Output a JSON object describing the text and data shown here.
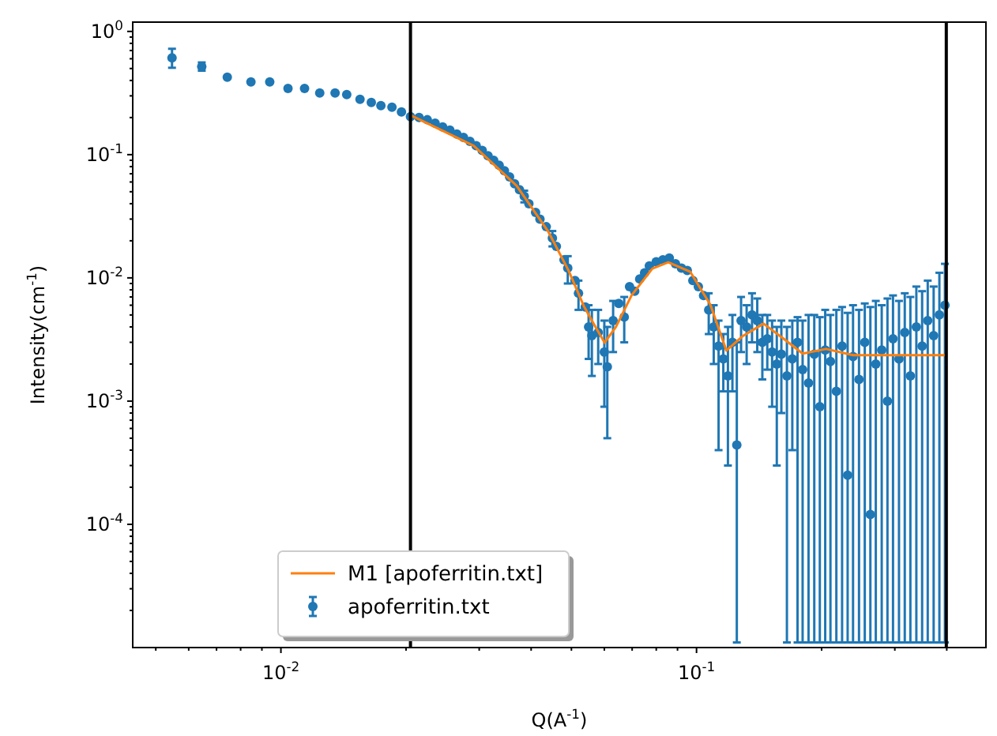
{
  "chart_data": {
    "type": "scatter",
    "xlabel": "Q(A$^{-1}$)",
    "ylabel": "Intensity(cm$^{-1}$)",
    "log": "xy",
    "legend": "bottom",
    "grid": false,
    "xlim": [
      0.0044,
      0.497
    ],
    "ylim": [
      1e-05,
      1.19
    ],
    "xticks": [
      {
        "value": 0.005,
        "label": null
      },
      {
        "value": 0.006,
        "label": null
      },
      {
        "value": 0.007,
        "label": null
      },
      {
        "value": 0.008,
        "label": null
      },
      {
        "value": 0.009,
        "label": null
      },
      {
        "value": 0.01,
        "label": "10$^{-2}$"
      },
      {
        "value": 0.02,
        "label": null
      },
      {
        "value": 0.03,
        "label": null
      },
      {
        "value": 0.04,
        "label": null
      },
      {
        "value": 0.05,
        "label": null
      },
      {
        "value": 0.06,
        "label": null
      },
      {
        "value": 0.07,
        "label": null
      },
      {
        "value": 0.08,
        "label": null
      },
      {
        "value": 0.09,
        "label": null
      },
      {
        "value": 0.1,
        "label": "10$^{-1}$"
      },
      {
        "value": 0.2,
        "label": null
      },
      {
        "value": 0.3,
        "label": null
      },
      {
        "value": 0.4,
        "label": null
      }
    ],
    "yticks": [
      {
        "value": 2e-05,
        "label": null
      },
      {
        "value": 3e-05,
        "label": null
      },
      {
        "value": 4e-05,
        "label": null
      },
      {
        "value": 5e-05,
        "label": null
      },
      {
        "value": 6e-05,
        "label": null
      },
      {
        "value": 7e-05,
        "label": null
      },
      {
        "value": 8e-05,
        "label": null
      },
      {
        "value": 9e-05,
        "label": null
      },
      {
        "value": 0.0001,
        "label": "10$^{-4}$"
      },
      {
        "value": 0.0002,
        "label": null
      },
      {
        "value": 0.0003,
        "label": null
      },
      {
        "value": 0.0004,
        "label": null
      },
      {
        "value": 0.0005,
        "label": null
      },
      {
        "value": 0.0006,
        "label": null
      },
      {
        "value": 0.0007,
        "label": null
      },
      {
        "value": 0.0008,
        "label": null
      },
      {
        "value": 0.0009,
        "label": null
      },
      {
        "value": 0.001,
        "label": "10$^{-3}$"
      },
      {
        "value": 0.002,
        "label": null
      },
      {
        "value": 0.003,
        "label": null
      },
      {
        "value": 0.004,
        "label": null
      },
      {
        "value": 0.005,
        "label": null
      },
      {
        "value": 0.006,
        "label": null
      },
      {
        "value": 0.007,
        "label": null
      },
      {
        "value": 0.008,
        "label": null
      },
      {
        "value": 0.009,
        "label": null
      },
      {
        "value": 0.01,
        "label": "10$^{-2}$"
      },
      {
        "value": 0.02,
        "label": null
      },
      {
        "value": 0.03,
        "label": null
      },
      {
        "value": 0.04,
        "label": null
      },
      {
        "value": 0.05,
        "label": null
      },
      {
        "value": 0.06,
        "label": null
      },
      {
        "value": 0.07,
        "label": null
      },
      {
        "value": 0.08,
        "label": null
      },
      {
        "value": 0.09,
        "label": null
      },
      {
        "value": 0.1,
        "label": "10$^{-1}$"
      },
      {
        "value": 0.2,
        "label": null
      },
      {
        "value": 0.3,
        "label": null
      },
      {
        "value": 0.4,
        "label": null
      },
      {
        "value": 0.5,
        "label": null
      },
      {
        "value": 0.6,
        "label": null
      },
      {
        "value": 0.7,
        "label": null
      },
      {
        "value": 0.8,
        "label": null
      },
      {
        "value": 0.9,
        "label": null
      },
      {
        "value": 1,
        "label": "10$^{0}$"
      }
    ],
    "ref_lines": [
      {
        "axis": "x",
        "value": 0.0205,
        "color": "#000000"
      },
      {
        "axis": "x",
        "value": 0.399,
        "color": "#000000"
      }
    ],
    "series": [
      {
        "name": "M1 [apoferritin.txt]",
        "type": "line",
        "color": "#ff7f0e",
        "marker": "none",
        "line_style": "solid",
        "x": [
          0.0205,
          0.0291,
          0.0369,
          0.0439,
          0.0492,
          0.0537,
          0.0571,
          0.0601,
          0.064,
          0.0698,
          0.0783,
          0.0855,
          0.0966,
          0.108,
          0.118,
          0.129,
          0.145,
          0.163,
          0.18,
          0.205,
          0.238,
          0.283,
          0.399
        ],
        "values": [
          0.209,
          0.118,
          0.056,
          0.024,
          0.0115,
          0.0058,
          0.00401,
          0.00298,
          0.00401,
          0.00722,
          0.0119,
          0.0134,
          0.0112,
          0.00605,
          0.00257,
          0.00336,
          0.00425,
          0.00316,
          0.00243,
          0.00265,
          0.00236,
          0.00236,
          0.00236
        ]
      },
      {
        "name": "apoferritin.txt",
        "color": "#1f77b4",
        "marker": "circle",
        "x": [
          0.00547,
          0.00645,
          0.00743,
          0.00847,
          0.0094,
          0.0104,
          0.0114,
          0.0124,
          0.0135,
          0.0144,
          0.0155,
          0.0165,
          0.0174,
          0.0185,
          0.0195,
          0.0205,
          0.0215,
          0.0225,
          0.0235,
          0.0245,
          0.0255,
          0.0265,
          0.0275,
          0.0285,
          0.0295,
          0.0305,
          0.0315,
          0.0325,
          0.0335,
          0.0345,
          0.0355,
          0.0365,
          0.0375,
          0.0385,
          0.0395,
          0.041,
          0.042,
          0.0435,
          0.045,
          0.046,
          0.048,
          0.049,
          0.051,
          0.052,
          0.054,
          0.055,
          0.056,
          0.058,
          0.06,
          0.061,
          0.063,
          0.065,
          0.067,
          0.069,
          0.071,
          0.073,
          0.075,
          0.077,
          0.08,
          0.083,
          0.086,
          0.089,
          0.092,
          0.095,
          0.098,
          0.101,
          0.104,
          0.107,
          0.11,
          0.113,
          0.116,
          0.119,
          0.122,
          0.125,
          0.128,
          0.132,
          0.136,
          0.14,
          0.144,
          0.148,
          0.152,
          0.156,
          0.16,
          0.165,
          0.17,
          0.175,
          0.18,
          0.186,
          0.192,
          0.198,
          0.204,
          0.21,
          0.217,
          0.224,
          0.231,
          0.238,
          0.246,
          0.254,
          0.262,
          0.27,
          0.279,
          0.288,
          0.297,
          0.307,
          0.317,
          0.327,
          0.338,
          0.349,
          0.36,
          0.372,
          0.384,
          0.396
        ],
        "values": [
          0.611,
          0.518,
          0.425,
          0.389,
          0.389,
          0.345,
          0.345,
          0.316,
          0.316,
          0.307,
          0.281,
          0.265,
          0.25,
          0.243,
          0.222,
          0.203,
          0.2,
          0.192,
          0.18,
          0.168,
          0.158,
          0.147,
          0.138,
          0.128,
          0.118,
          0.108,
          0.098,
          0.09,
          0.082,
          0.074,
          0.066,
          0.058,
          0.052,
          0.046,
          0.04,
          0.034,
          0.03,
          0.026,
          0.021,
          0.018,
          0.014,
          0.012,
          0.0095,
          0.0075,
          0.0058,
          0.004,
          0.0034,
          0.0036,
          0.0025,
          0.0019,
          0.0045,
          0.0062,
          0.0048,
          0.0085,
          0.0078,
          0.0098,
          0.011,
          0.0125,
          0.0135,
          0.014,
          0.0145,
          0.013,
          0.012,
          0.0115,
          0.0095,
          0.0085,
          0.0072,
          0.0055,
          0.004,
          0.0028,
          0.0022,
          0.0016,
          0.003,
          0.00044,
          0.0045,
          0.004,
          0.005,
          0.0045,
          0.003,
          0.0032,
          0.0025,
          0.002,
          0.0024,
          0.0016,
          0.0022,
          0.003,
          0.0018,
          0.0014,
          0.0024,
          0.0009,
          0.0026,
          0.0021,
          0.0012,
          0.0028,
          0.00025,
          0.0023,
          0.0015,
          0.003,
          0.00012,
          0.002,
          0.0026,
          0.001,
          0.0032,
          0.0022,
          0.0036,
          0.0016,
          0.004,
          0.0028,
          0.0045,
          0.0034,
          0.005,
          0.006
        ],
        "errors": [
          [
            0.507,
            0.723
          ],
          [
            0.48,
            0.56
          ],
          null,
          null,
          null,
          null,
          null,
          null,
          null,
          null,
          null,
          null,
          null,
          null,
          null,
          null,
          null,
          null,
          null,
          null,
          null,
          null,
          null,
          null,
          null,
          null,
          null,
          null,
          null,
          null,
          null,
          null,
          null,
          [
            0.041,
            0.051
          ],
          null,
          null,
          null,
          null,
          [
            0.018,
            0.024
          ],
          null,
          null,
          [
            0.009,
            0.015
          ],
          null,
          [
            0.0055,
            0.0095
          ],
          null,
          [
            0.0022,
            0.006
          ],
          [
            0.0016,
            0.0055
          ],
          [
            0.002,
            0.0055
          ],
          [
            0.0009,
            0.0045
          ],
          [
            0.0005,
            0.004
          ],
          [
            0.0025,
            0.0065
          ],
          null,
          [
            0.003,
            0.007
          ],
          null,
          null,
          null,
          null,
          null,
          null,
          null,
          null,
          null,
          null,
          null,
          null,
          null,
          null,
          [
            0.0035,
            0.0075
          ],
          [
            0.002,
            0.006
          ],
          [
            0.0004,
            0.0045
          ],
          [
            0.0012,
            0.0035
          ],
          [
            0.0003,
            0.004
          ],
          [
            0.0012,
            0.005
          ],
          [
            1.1e-05,
            0.003
          ],
          [
            0.0025,
            0.007
          ],
          [
            0.002,
            0.006
          ],
          [
            0.003,
            0.0075
          ],
          [
            0.0025,
            0.0068
          ],
          [
            0.0015,
            0.005
          ],
          [
            0.0018,
            0.005
          ],
          [
            0.0009,
            0.0045
          ],
          [
            0.0003,
            0.004
          ],
          [
            0.0008,
            0.0045
          ],
          [
            1.1e-05,
            0.004
          ],
          [
            0.0004,
            0.0045
          ],
          [
            1.1e-05,
            0.0048
          ],
          [
            1.1e-05,
            0.0045
          ],
          [
            1.1e-05,
            0.005
          ],
          [
            1.1e-05,
            0.005
          ],
          [
            1.1e-05,
            0.0048
          ],
          [
            1.1e-05,
            0.0055
          ],
          [
            1.1e-05,
            0.005
          ],
          [
            1.1e-05,
            0.0055
          ],
          [
            1.1e-05,
            0.0058
          ],
          [
            1.1e-05,
            0.0052
          ],
          [
            1.1e-05,
            0.006
          ],
          [
            1.1e-05,
            0.0055
          ],
          [
            1.1e-05,
            0.0062
          ],
          [
            1.1e-05,
            0.0058
          ],
          [
            1.1e-05,
            0.0065
          ],
          [
            1.1e-05,
            0.006
          ],
          [
            1.1e-05,
            0.0068
          ],
          [
            1.1e-05,
            0.0072
          ],
          [
            1.1e-05,
            0.0065
          ],
          [
            1.1e-05,
            0.0075
          ],
          [
            1.1e-05,
            0.007
          ],
          [
            1.1e-05,
            0.0085
          ],
          [
            1.1e-05,
            0.0078
          ],
          [
            1.1e-05,
            0.0095
          ],
          [
            1.1e-05,
            0.0085
          ],
          [
            1.1e-05,
            0.011
          ],
          [
            1.1e-05,
            0.013
          ]
        ]
      }
    ]
  }
}
